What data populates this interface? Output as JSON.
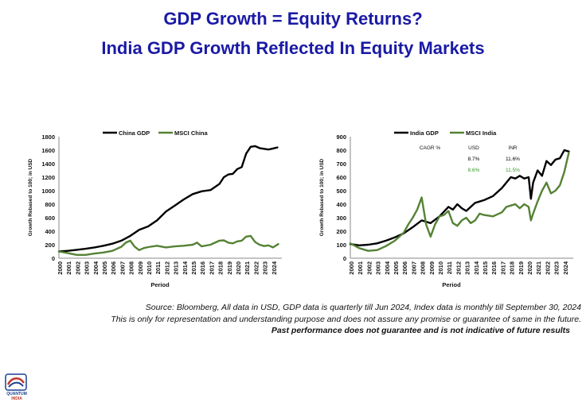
{
  "page": {
    "title_line1": "GDP Growth = Equity Returns?",
    "title_line2": "India GDP Growth Reflected In Equity Markets",
    "source_note": "Source: Bloomberg, All data in USD, GDP data is quarterly till Jun 2024, Index data is monthly till September 30, 2024",
    "disclaimer": "This is only for representation and understanding purpose and does not assure any promise or guarantee of same in the future.",
    "past_performance": "Past performance does not guarantee and is not indicative of future results",
    "logo_line1": "QUANTUM",
    "logo_line2": "INDIA"
  },
  "colors": {
    "title": "#1a1aa6",
    "gdp": "#000000",
    "msci": "#548235",
    "cagr_msci": "#3a9a2a"
  },
  "chart_data": [
    {
      "type": "line",
      "id": "china",
      "xlabel": "Period",
      "ylabel": "Growth Rebased to 100; in USD",
      "ylim": [
        0,
        1800
      ],
      "yticks": [
        0,
        200,
        400,
        600,
        800,
        1000,
        1200,
        1400,
        1600,
        1800
      ],
      "xlim": [
        2000,
        2025
      ],
      "xticks": [
        "2000",
        "2001",
        "2002",
        "2003",
        "2004",
        "2005",
        "2006",
        "2007",
        "2008",
        "2009",
        "2010",
        "2011",
        "2012",
        "2013",
        "2014",
        "2015",
        "2016",
        "2017",
        "2018",
        "2019",
        "2020",
        "2021",
        "2022",
        "2023",
        "2024"
      ],
      "legend_position": "top",
      "series": [
        {
          "name": "China GDP",
          "color": "#000000",
          "x": [
            2000,
            2001,
            2002,
            2003,
            2004,
            2005,
            2006,
            2007,
            2008,
            2009,
            2010,
            2011,
            2012,
            2013,
            2014,
            2015,
            2016,
            2017,
            2018,
            2018.5,
            2019,
            2019.5,
            2020,
            2020.5,
            2021,
            2021.5,
            2022,
            2022.5,
            2023,
            2023.5,
            2024,
            2024.5
          ],
          "y": [
            100,
            110,
            125,
            140,
            160,
            185,
            215,
            260,
            330,
            420,
            470,
            560,
            690,
            780,
            870,
            950,
            990,
            1010,
            1100,
            1200,
            1240,
            1250,
            1320,
            1350,
            1550,
            1650,
            1660,
            1630,
            1620,
            1610,
            1625,
            1640
          ]
        },
        {
          "name": "MSCI China",
          "color": "#548235",
          "x": [
            2000,
            2001,
            2002,
            2003,
            2004,
            2005,
            2006,
            2007,
            2007.5,
            2008,
            2008.5,
            2009,
            2009.5,
            2010,
            2011,
            2012,
            2013,
            2014,
            2015,
            2015.5,
            2016,
            2017,
            2018,
            2018.5,
            2019,
            2019.5,
            2020,
            2020.5,
            2021,
            2021.5,
            2022,
            2022.5,
            2023,
            2023.5,
            2024,
            2024.6
          ],
          "y": [
            100,
            75,
            50,
            50,
            70,
            85,
            110,
            170,
            230,
            260,
            170,
            120,
            150,
            165,
            185,
            160,
            175,
            185,
            200,
            230,
            175,
            200,
            260,
            265,
            230,
            220,
            250,
            260,
            320,
            330,
            240,
            200,
            180,
            190,
            160,
            210
          ]
        }
      ]
    },
    {
      "type": "line",
      "id": "india",
      "xlabel": "Period",
      "ylabel": "Growth Rebased to 100; in USD",
      "ylim": [
        0,
        900
      ],
      "yticks": [
        0,
        100,
        200,
        300,
        400,
        500,
        600,
        700,
        800,
        900
      ],
      "xlim": [
        2000,
        2025
      ],
      "xticks": [
        "2000",
        "2001",
        "2002",
        "2003",
        "2004",
        "2005",
        "2006",
        "2007",
        "2008",
        "2009",
        "2010",
        "2011",
        "2012",
        "2013",
        "2014",
        "2015",
        "2016",
        "2017",
        "2018",
        "2019",
        "2020",
        "2021",
        "2022",
        "2023",
        "2024"
      ],
      "legend_position": "top",
      "series": [
        {
          "name": "India GDP",
          "color": "#000000",
          "x": [
            2000,
            2001,
            2002,
            2003,
            2004,
            2005,
            2006,
            2007,
            2008,
            2009,
            2010,
            2011,
            2011.5,
            2012,
            2012.5,
            2013,
            2013.5,
            2014,
            2015,
            2016,
            2017,
            2018,
            2018.5,
            2019,
            2019.5,
            2020,
            2020.25,
            2020.5,
            2021,
            2021.5,
            2022,
            2022.5,
            2023,
            2023.5,
            2024,
            2024.5
          ],
          "y": [
            105,
            95,
            100,
            110,
            130,
            155,
            185,
            230,
            280,
            260,
            310,
            380,
            360,
            400,
            370,
            350,
            380,
            410,
            430,
            460,
            520,
            600,
            590,
            610,
            590,
            600,
            440,
            560,
            650,
            610,
            720,
            690,
            730,
            740,
            800,
            790
          ]
        },
        {
          "name": "MSCI India",
          "color": "#548235",
          "x": [
            2000,
            2001,
            2002,
            2003,
            2004,
            2005,
            2006,
            2006.5,
            2007,
            2007.5,
            2008,
            2008.5,
            2009,
            2009.5,
            2010,
            2010.5,
            2011,
            2011.5,
            2012,
            2012.5,
            2013,
            2013.5,
            2014,
            2014.5,
            2015,
            2016,
            2017,
            2017.5,
            2018,
            2018.5,
            2019,
            2019.5,
            2020,
            2020.25,
            2020.5,
            2021,
            2021.5,
            2022,
            2022.5,
            2023,
            2023.5,
            2024,
            2024.5
          ],
          "y": [
            110,
            75,
            55,
            60,
            90,
            130,
            190,
            250,
            300,
            360,
            450,
            250,
            160,
            250,
            310,
            320,
            350,
            260,
            240,
            280,
            300,
            260,
            280,
            330,
            320,
            310,
            340,
            380,
            390,
            400,
            370,
            400,
            380,
            280,
            330,
            420,
            500,
            560,
            480,
            500,
            540,
            640,
            780
          ]
        }
      ],
      "cagr_table": {
        "header": [
          "CAGR %",
          "USD",
          "INR"
        ],
        "rows": [
          {
            "values": [
              "8.7%",
              "11.6%"
            ],
            "color": "#000000"
          },
          {
            "values": [
              "8.6%",
              "11.5%"
            ],
            "color": "#3a9a2a"
          }
        ]
      }
    }
  ]
}
